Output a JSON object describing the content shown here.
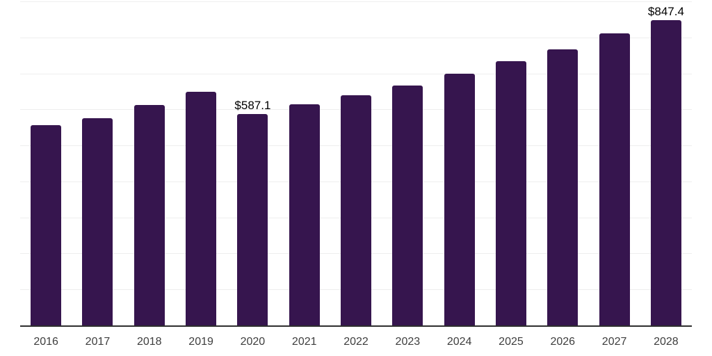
{
  "page": {
    "background": "#ffffff"
  },
  "chart_data": {
    "type": "bar",
    "title": "",
    "xlabel": "",
    "ylabel": "",
    "categories": [
      "2016",
      "2017",
      "2018",
      "2019",
      "2020",
      "2021",
      "2022",
      "2023",
      "2024",
      "2025",
      "2026",
      "2027",
      "2028"
    ],
    "values": [
      556,
      576,
      612,
      648,
      587.1,
      614,
      639,
      667,
      700,
      734,
      766,
      811,
      847.4
    ],
    "annotations": [
      {
        "category": "2020",
        "label": "$587.1"
      },
      {
        "category": "2028",
        "label": "$847.4"
      }
    ],
    "ylim": [
      0,
      900
    ],
    "grid_step": 100,
    "grid": "horizontal",
    "y_axis_labels_visible": false,
    "legend_position": "none",
    "colors": {
      "bar": "#36154e",
      "axis_line": "#2e2e2e",
      "gridline": "#eeeeee",
      "tick_label": "#3e3e3e",
      "data_label": "#000000"
    }
  }
}
